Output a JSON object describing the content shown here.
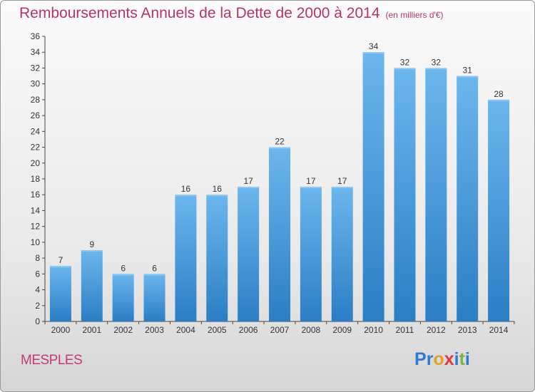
{
  "header": {
    "title": "Remboursements Annuels de la Dette de 2000 à 2014",
    "unit": "(en milliers d'€)"
  },
  "footer": {
    "town": "MESPLES",
    "logo_letters": [
      {
        "ch": "P",
        "color": "#2c7bd1"
      },
      {
        "ch": "r",
        "color": "#2c7bd1"
      },
      {
        "ch": "o",
        "color": "#e2a02a"
      },
      {
        "ch": "x",
        "color": "#e23a3a"
      },
      {
        "ch": "i",
        "color": "#2c7bd1"
      },
      {
        "ch": "t",
        "color": "#7cb342"
      },
      {
        "ch": "i",
        "color": "#2c7bd1"
      }
    ]
  },
  "chart_data": {
    "type": "bar",
    "title": "Remboursements Annuels de la Dette de 2000 à 2014",
    "categories": [
      "2000",
      "2001",
      "2002",
      "2003",
      "2004",
      "2005",
      "2006",
      "2007",
      "2008",
      "2009",
      "2010",
      "2011",
      "2012",
      "2013",
      "2014"
    ],
    "values": [
      7,
      9,
      6,
      6,
      16,
      16,
      17,
      22,
      17,
      17,
      34,
      32,
      32,
      31,
      28
    ],
    "ylim": [
      0,
      36
    ],
    "ytick_step": 2,
    "grid": false,
    "bar_color": "#3f95dc",
    "bar_color_light": "#6cb6ee",
    "bar_color_dark": "#2b7ec4"
  }
}
